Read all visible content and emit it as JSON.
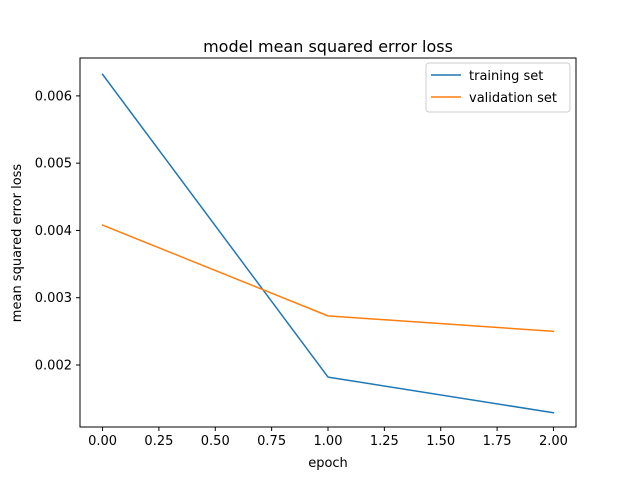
{
  "chart_data": {
    "type": "line",
    "title": "model mean squared error loss",
    "xlabel": "epoch",
    "ylabel": "mean squared error loss",
    "x": [
      0,
      1,
      2
    ],
    "series": [
      {
        "name": "training set",
        "color": "#1f77b4",
        "values": [
          0.00632,
          0.00182,
          0.00129
        ]
      },
      {
        "name": "validation set",
        "color": "#ff7f0e",
        "values": [
          0.00408,
          0.00273,
          0.0025
        ]
      }
    ],
    "xlim": [
      -0.1,
      2.1
    ],
    "ylim": [
      0.0010783,
      0.0065632
    ],
    "xticks": [
      0,
      0.25,
      0.5,
      0.75,
      1.0,
      1.25,
      1.5,
      1.75,
      2.0
    ],
    "xtick_labels": [
      "0.00",
      "0.25",
      "0.50",
      "0.75",
      "1.00",
      "1.25",
      "1.50",
      "1.75",
      "2.00"
    ],
    "yticks": [
      0.002,
      0.003,
      0.004,
      0.005,
      0.006
    ],
    "ytick_labels": [
      "0.002",
      "0.003",
      "0.004",
      "0.005",
      "0.006"
    ],
    "grid": false,
    "legend_position": "top-right"
  }
}
